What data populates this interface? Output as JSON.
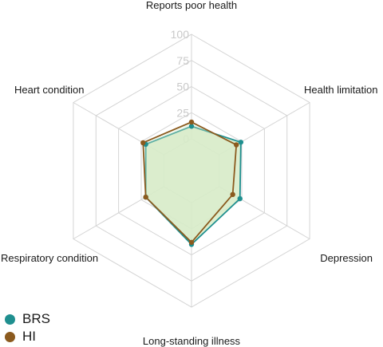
{
  "chart_data": {
    "type": "radar",
    "title": "",
    "axes": [
      "Reports poor health",
      "Health limitation",
      "Depression",
      "Long-standing illness",
      "Respiratory condition",
      "Heart condition"
    ],
    "ticks": [
      0,
      25,
      50,
      75,
      100
    ],
    "range": [
      0,
      100
    ],
    "grid": true,
    "fill": "#d7ecc8",
    "series": [
      {
        "name": "BRS",
        "color": "#1f8f8f",
        "values": [
          12,
          24,
          23,
          40,
          20,
          20
        ]
      },
      {
        "name": "HI",
        "color": "#8b5a1e",
        "values": [
          16,
          19,
          15,
          38,
          20,
          23
        ]
      }
    ],
    "legend_position": "bottom-left"
  }
}
